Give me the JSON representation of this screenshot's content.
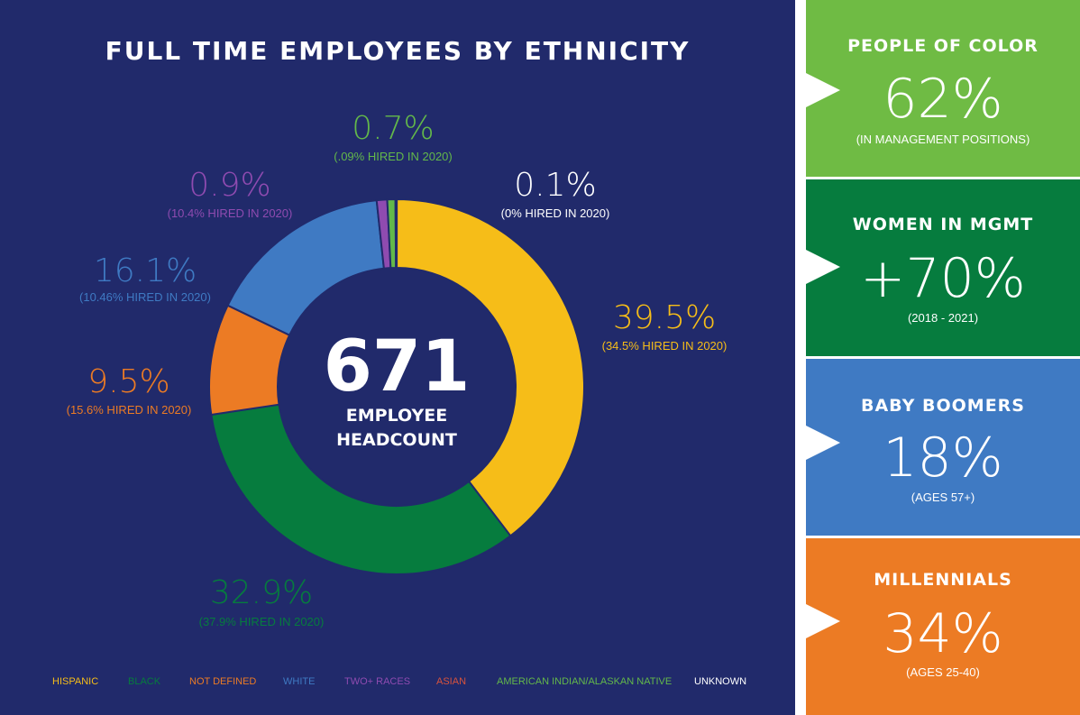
{
  "chart_data": {
    "type": "donut",
    "title": "FULL TIME EMPLOYEES BY ETHNICITY",
    "center": {
      "value": "671",
      "caption_line1": "EMPLOYEE",
      "caption_line2": "HEADCOUNT"
    },
    "slices": [
      {
        "name": "HISPANIC",
        "value": 39.5,
        "label": "39.5%",
        "sublabel": "(34.5% HIRED IN 2020)",
        "color": "#f6bd18"
      },
      {
        "name": "BLACK",
        "value": 32.9,
        "label": "32.9%",
        "sublabel": "(37.9% HIRED IN 2020)",
        "color": "#067c3e"
      },
      {
        "name": "NOT DEFINED",
        "value": 9.5,
        "label": "9.5%",
        "sublabel": "(15.6% HIRED IN 2020)",
        "color": "#ec7b24"
      },
      {
        "name": "WHITE",
        "value": 16.1,
        "label": "16.1%",
        "sublabel": "(10.46% HIRED IN 2020)",
        "color": "#3f7ac3"
      },
      {
        "name": "TWO+ RACES",
        "value": 0.9,
        "label": "0.9%",
        "sublabel": "(10.4% HIRED IN 2020)",
        "color": "#8f4bb0"
      },
      {
        "name": "ASIAN",
        "value": 0,
        "label": "",
        "sublabel": "",
        "color": "#d9533c"
      },
      {
        "name": "AMERICAN INDIAN/ALASKAN NATIVE",
        "value": 0.7,
        "label": "0.7%",
        "sublabel": "(.09% HIRED IN 2020)",
        "color": "#63b84a"
      },
      {
        "name": "UNKNOWN",
        "value": 0.1,
        "label": "0.1%",
        "sublabel": "(0% HIRED IN 2020)",
        "color": "#ffffff"
      }
    ],
    "legend_placement": "bottom"
  },
  "colors": {
    "background": "#212a6b",
    "card_people_of_color": "#6fbb44",
    "card_women": "#067c3e",
    "card_boomers": "#3f7ac3",
    "card_millennials": "#ec7b24"
  },
  "sidebar": {
    "cards": [
      {
        "title": "PEOPLE OF COLOR",
        "value": "62%",
        "note": "(IN MANAGEMENT POSITIONS)"
      },
      {
        "title": "WOMEN IN MGMT",
        "value": "+70%",
        "note": "(2018 - 2021)"
      },
      {
        "title": "BABY BOOMERS",
        "value": "18%",
        "note": "(AGES 57+)"
      },
      {
        "title": "MILLENNIALS",
        "value": "34%",
        "note": "(AGES 25-40)"
      }
    ]
  }
}
